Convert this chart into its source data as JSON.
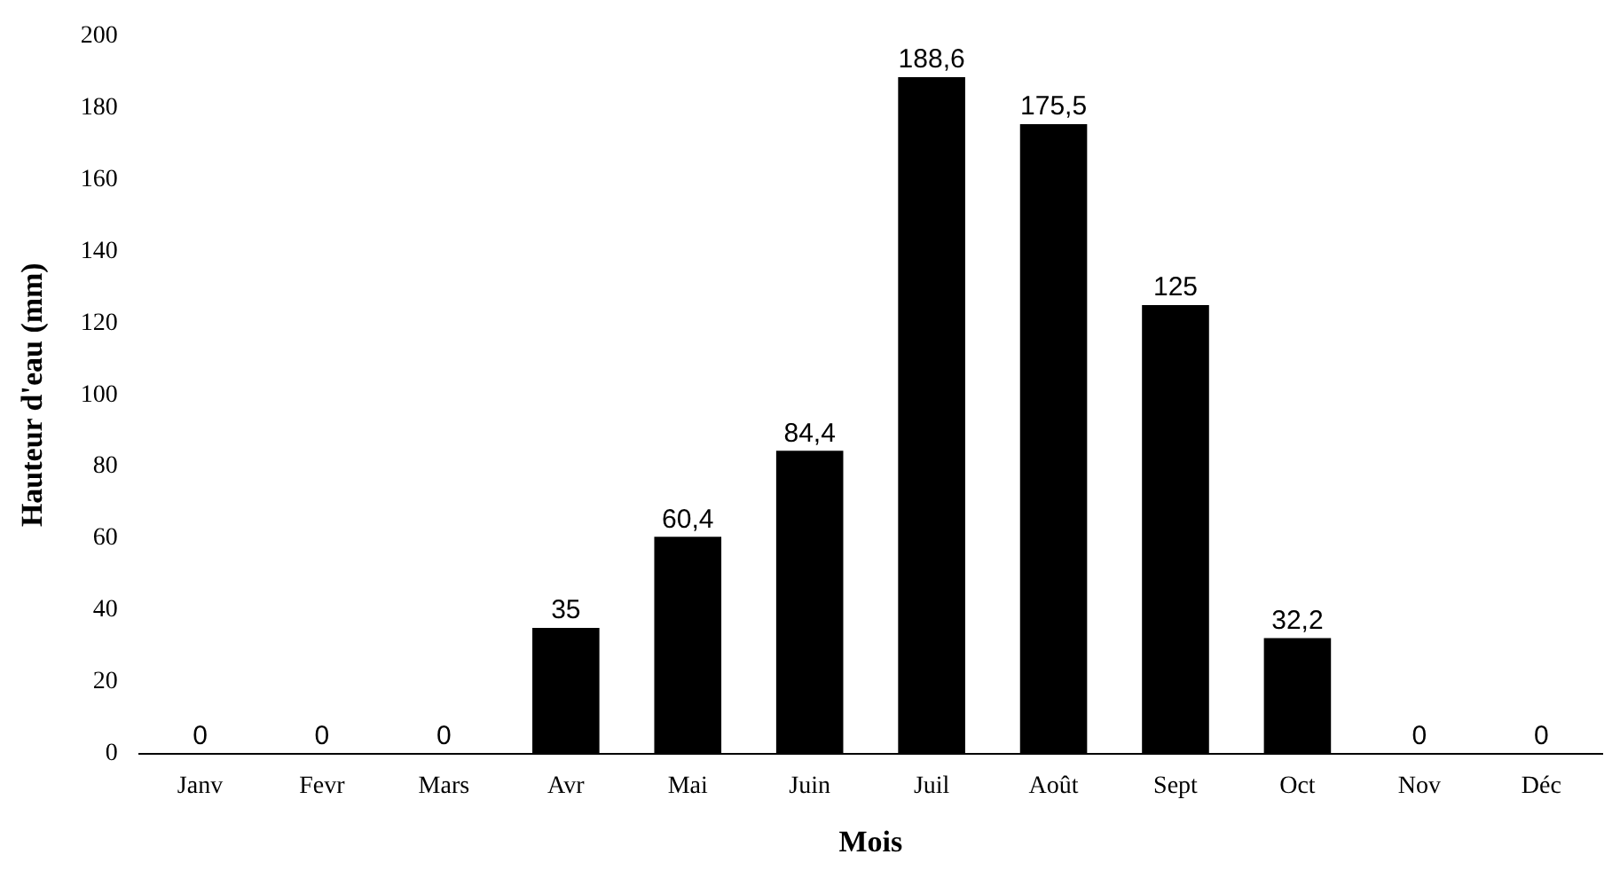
{
  "chart_data": {
    "type": "bar",
    "xlabel": "Mois",
    "ylabel": "Hauteur d'eau (mm)",
    "categories": [
      "Janv",
      "Fevr",
      "Mars",
      "Avr",
      "Mai",
      "Juin",
      "Juil",
      "Août",
      "Sept",
      "Oct",
      "Nov",
      "Déc"
    ],
    "values": [
      0,
      0,
      0,
      35,
      60.4,
      84.4,
      188.6,
      175.5,
      125,
      32.2,
      0,
      0
    ],
    "value_labels": [
      "0",
      "0",
      "0",
      "35",
      "60,4",
      "84,4",
      "188,6",
      "175,5",
      "125",
      "32,2",
      "0",
      "0"
    ],
    "color": "#000000",
    "ylim": [
      0,
      200
    ],
    "yticks": [
      0,
      20,
      40,
      60,
      80,
      100,
      120,
      140,
      160,
      180,
      200
    ],
    "grid": false,
    "legend": false
  }
}
